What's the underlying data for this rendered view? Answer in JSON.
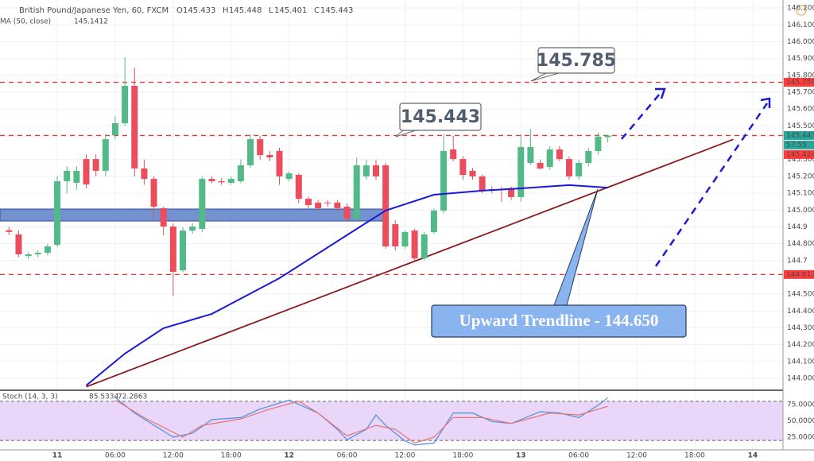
{
  "chart_data": [
    {
      "type": "candlestick",
      "title": "British Pound/Japanese Yen, 60, FXCM",
      "ohlc_header": [
        {
          "label": "O",
          "value": 145.433
        },
        {
          "label": "H",
          "value": 145.448
        },
        {
          "label": "L",
          "value": 145.401
        },
        {
          "label": "C",
          "value": 145.443
        }
      ],
      "up_color": "#53b987",
      "down_color": "#eb4d5c",
      "x": [
        -5,
        -4,
        -3,
        -2,
        -1,
        0,
        1,
        2,
        3,
        4,
        5,
        6,
        7,
        8,
        9,
        10,
        11,
        12,
        13,
        14,
        15,
        16,
        17,
        18,
        19,
        20,
        21,
        22,
        23,
        24,
        25,
        26,
        27,
        28,
        29,
        30,
        31,
        32,
        33,
        34,
        35,
        36,
        37,
        38,
        39,
        40,
        41,
        42,
        43,
        44,
        45,
        46,
        47,
        48,
        49,
        50,
        51,
        52,
        53,
        54,
        55,
        56,
        57
      ],
      "open": [
        144.88,
        144.855,
        144.727,
        144.737,
        144.746,
        144.793,
        145.171,
        145.162,
        145.303,
        145.303,
        145.233,
        145.445,
        145.516,
        145.738,
        145.247,
        145.185,
        145.011,
        144.902,
        144.642,
        144.878,
        144.888,
        145.185,
        145.171,
        145.162,
        145.171,
        145.266,
        145.421,
        145.327,
        145.351,
        145.185,
        145.209,
        145.067,
        145.044,
        145.044,
        145.044,
        145.02,
        144.949,
        145.2,
        145.266,
        145.266,
        144.916,
        144.784,
        144.878,
        144.713,
        144.869,
        144.997,
        145.36,
        145.303,
        145.233,
        145.2,
        145.124,
        145.124,
        145.124,
        145.077,
        145.28,
        145.28,
        145.256,
        145.36,
        145.303,
        145.2,
        145.28,
        145.351,
        145.433
      ],
      "high": [
        144.9,
        144.88,
        144.75,
        144.76,
        144.8,
        145.2,
        145.26,
        145.26,
        145.33,
        145.33,
        145.45,
        145.56,
        145.908,
        145.846,
        145.3,
        145.2,
        145.02,
        144.92,
        144.9,
        144.92,
        145.2,
        145.2,
        145.19,
        145.2,
        145.3,
        145.45,
        145.44,
        145.35,
        145.37,
        145.23,
        145.22,
        145.08,
        145.06,
        145.06,
        145.06,
        145.04,
        145.31,
        145.3,
        145.3,
        145.28,
        144.94,
        144.88,
        144.89,
        144.87,
        145.01,
        145.45,
        145.44,
        145.32,
        145.25,
        145.21,
        145.14,
        145.14,
        145.14,
        145.45,
        145.48,
        145.3,
        145.38,
        145.38,
        145.32,
        145.3,
        145.37,
        145.46,
        145.448
      ],
      "low": [
        144.85,
        144.72,
        144.71,
        144.72,
        144.73,
        144.78,
        145.1,
        145.12,
        145.13,
        145.2,
        145.2,
        145.42,
        145.5,
        145.2,
        145.15,
        144.95,
        144.85,
        144.491,
        144.63,
        144.86,
        144.87,
        145.16,
        145.15,
        145.15,
        145.16,
        145.25,
        145.3,
        145.29,
        145.15,
        145.17,
        145.04,
        145.01,
        145.0,
        145.02,
        144.99,
        144.93,
        144.93,
        145.18,
        145.18,
        144.77,
        144.76,
        144.77,
        144.7,
        144.7,
        144.86,
        144.98,
        145.29,
        145.18,
        145.18,
        145.1,
        145.1,
        145.05,
        145.06,
        145.05,
        145.27,
        145.24,
        145.24,
        145.29,
        145.18,
        145.18,
        145.26,
        145.33,
        145.401
      ],
      "close": [
        144.87,
        144.737,
        144.737,
        144.746,
        144.784,
        145.171,
        145.233,
        145.233,
        145.152,
        145.233,
        145.421,
        145.516,
        145.738,
        145.247,
        145.185,
        145.02,
        144.902,
        144.633,
        144.878,
        144.902,
        145.185,
        145.171,
        145.165,
        145.185,
        145.266,
        145.421,
        145.327,
        145.313,
        145.2,
        145.218,
        145.067,
        145.03,
        145.011,
        145.04,
        145.011,
        144.949,
        145.266,
        145.266,
        145.2,
        144.784,
        144.784,
        144.869,
        144.713,
        144.855,
        144.997,
        145.351,
        145.303,
        145.209,
        145.2,
        145.115,
        145.12,
        145.12,
        145.077,
        145.374,
        145.374,
        145.247,
        145.36,
        145.303,
        145.2,
        145.28,
        145.351,
        145.436,
        145.443
      ],
      "ma": {
        "name": "MA (50, close)",
        "value": 145.1412,
        "color": "#1a1ad8",
        "x": [
          3,
          7,
          11,
          16,
          23,
          31,
          34,
          39,
          44,
          48,
          53,
          57
        ],
        "values": [
          143.958,
          144.147,
          144.298,
          144.383,
          144.595,
          144.888,
          144.997,
          145.091,
          145.115,
          145.129,
          145.148,
          145.133
        ]
      },
      "trendline": {
        "color": "#8b1a1a",
        "x": [
          3,
          70
        ],
        "y": [
          143.95,
          145.42
        ]
      },
      "zone": [
        144.935,
        145.006
      ],
      "zone_color": "#5b7fc7",
      "hlines": [
        145.759,
        145.443,
        144.617
      ],
      "hline_color": "#e53935",
      "badges": [
        {
          "label": 145.759,
          "color": "#ff3b3b"
        },
        {
          "label": 145.443,
          "color": "#26a69a"
        },
        {
          "label": "57:55",
          "color": "#26a69a"
        },
        {
          "label": 145.424,
          "color": "#ff3b3b"
        },
        {
          "label": 144.617,
          "color": "#ff3b3b"
        }
      ],
      "callouts": [
        "145.785",
        "145.443",
        "Upward Trendline - 144.650"
      ],
      "xlim": [
        -5.93,
        75.14
      ],
      "xticks": [
        {
          "value": 0,
          "label": "11"
        },
        {
          "value": 6,
          "label": "06:00"
        },
        {
          "value": 12,
          "label": "12:00"
        },
        {
          "value": 18,
          "label": "18:00"
        },
        {
          "value": 24,
          "label": "12"
        },
        {
          "value": 30,
          "label": "06:00"
        },
        {
          "value": 36,
          "label": "12:00"
        },
        {
          "value": 42,
          "label": "18:00"
        },
        {
          "value": 48,
          "label": "13"
        },
        {
          "value": 54,
          "label": "06:00"
        },
        {
          "value": 60,
          "label": "12:00"
        },
        {
          "value": 66,
          "label": "18:00"
        },
        {
          "value": 72,
          "label": "14"
        }
      ],
      "ylim": [
        143.934,
        146.248
      ],
      "yticks": [
        {
          "value": 144.0,
          "label": "144.000"
        },
        {
          "value": 144.1,
          "label": "144.100"
        },
        {
          "value": 144.2,
          "label": "144.200"
        },
        {
          "value": 144.3,
          "label": "144.300"
        },
        {
          "value": 144.4,
          "label": "144.400"
        },
        {
          "value": 144.5,
          "label": "144.500"
        },
        144.7,
        {
          "value": 144.8,
          "label": "144.800"
        },
        144.9,
        {
          "value": 145.0,
          "label": "145.000"
        },
        {
          "value": 145.1,
          "label": "145.100"
        },
        {
          "value": 145.2,
          "label": "145.200"
        },
        {
          "value": 145.3,
          "label": "145.300"
        },
        {
          "value": 145.5,
          "label": "145.500"
        },
        {
          "value": 145.6,
          "label": "145.600"
        },
        {
          "value": 145.7,
          "label": "145.700"
        },
        {
          "value": 145.8,
          "label": "145.800"
        },
        {
          "value": 145.9,
          "label": "145.900"
        },
        {
          "value": 146.0,
          "label": "146.000"
        },
        {
          "value": 146.1,
          "label": "146.100"
        },
        {
          "value": 146.2,
          "label": "146.200"
        }
      ],
      "grid": true
    },
    {
      "type": "line",
      "title": "Stoch (14, 3, 3)",
      "header_values": [
        85.5334,
        72.2863
      ],
      "series": [
        {
          "color": "#4a90e2",
          "x": [
            6,
            8,
            12,
            14,
            16,
            19,
            21,
            24,
            27,
            29,
            30,
            32,
            33,
            34,
            36,
            37,
            39,
            41,
            43,
            45,
            47,
            50,
            52,
            54,
            56,
            57
          ],
          "values": [
            86,
            62,
            25,
            31,
            52,
            55,
            68,
            82,
            62,
            37,
            21,
            37,
            59,
            43,
            19,
            13,
            16,
            62,
            62,
            49,
            46,
            64,
            62,
            55,
            74,
            85.5334
          ]
        },
        {
          "color": "#e57373",
          "x": [
            6,
            9,
            13,
            15,
            19,
            22,
            25,
            27,
            30,
            33,
            35,
            37,
            39,
            41,
            44,
            47,
            51,
            54,
            57
          ],
          "values": [
            82,
            55,
            25,
            43,
            53,
            68,
            80,
            62,
            27,
            43,
            37,
            16,
            25,
            55,
            55,
            46,
            62,
            59,
            72.2863
          ]
        }
      ],
      "bands": [
        20,
        80
      ],
      "band_fill": "#ead6f8",
      "ylim": [
        6.7,
        95.7
      ],
      "yticks": [
        {
          "value": 25,
          "label": "25.0000"
        },
        {
          "value": 50,
          "label": "50.0000"
        },
        {
          "value": 75,
          "label": "75.0000"
        }
      ]
    }
  ]
}
